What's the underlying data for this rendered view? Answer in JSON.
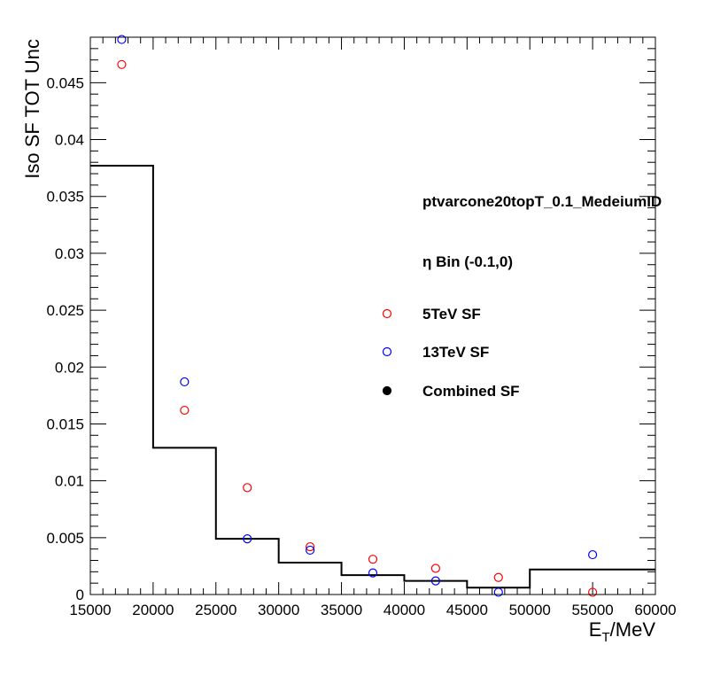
{
  "chart_data": {
    "type": "scatter",
    "ylabel": "Iso SF TOT Unc",
    "xlabel_main": "E",
    "xlabel_sub": "T",
    "xlabel_rest": "/MeV",
    "xlim": [
      15000,
      60000
    ],
    "ylim": [
      0,
      0.049
    ],
    "x_ticks": [
      15000,
      20000,
      25000,
      30000,
      35000,
      40000,
      45000,
      50000,
      55000,
      60000
    ],
    "y_ticks": [
      0,
      0.005,
      0.01,
      0.015,
      0.02,
      0.025,
      0.03,
      0.035,
      0.04,
      0.045
    ],
    "x_tick_labels": [
      "15000",
      "20000",
      "25000",
      "30000",
      "35000",
      "40000",
      "45000",
      "50000",
      "55000",
      "60000"
    ],
    "y_tick_labels": [
      "0",
      "0.005",
      "0.01",
      "0.015",
      "0.02",
      "0.025",
      "0.03",
      "0.035",
      "0.04",
      "0.045"
    ],
    "annotations": [
      "ptvarcone20topT_0.1_MedeiumID",
      "η Bin (-0.1,0)"
    ],
    "grid": false,
    "legend_placement": "right",
    "series": [
      {
        "name": "5TeV SF",
        "marker": "open-circle",
        "color": "#ff0000",
        "points": [
          {
            "x": 17500,
            "y": 0.0466
          },
          {
            "x": 22500,
            "y": 0.0162
          },
          {
            "x": 27500,
            "y": 0.0094
          },
          {
            "x": 32500,
            "y": 0.0042
          },
          {
            "x": 37500,
            "y": 0.0031
          },
          {
            "x": 42500,
            "y": 0.0023
          },
          {
            "x": 47500,
            "y": 0.0015
          },
          {
            "x": 55000,
            "y": 0.0002
          }
        ]
      },
      {
        "name": "13TeV SF",
        "marker": "open-circle",
        "color": "#0000ff",
        "points": [
          {
            "x": 17500,
            "y": 0.0488
          },
          {
            "x": 22500,
            "y": 0.0187
          },
          {
            "x": 27500,
            "y": 0.0049
          },
          {
            "x": 32500,
            "y": 0.0039
          },
          {
            "x": 37500,
            "y": 0.0019
          },
          {
            "x": 42500,
            "y": 0.0012
          },
          {
            "x": 47500,
            "y": 0.0002
          },
          {
            "x": 55000,
            "y": 0.0035
          }
        ]
      },
      {
        "name": "Combined SF",
        "marker": "filled-circle",
        "color": "#000000",
        "type": "step",
        "bins": [
          {
            "low": 15000,
            "high": 20000,
            "value": 0.0377
          },
          {
            "low": 20000,
            "high": 25000,
            "value": 0.0129
          },
          {
            "low": 25000,
            "high": 30000,
            "value": 0.0049
          },
          {
            "low": 30000,
            "high": 35000,
            "value": 0.0028
          },
          {
            "low": 35000,
            "high": 40000,
            "value": 0.0017
          },
          {
            "low": 40000,
            "high": 45000,
            "value": 0.0012
          },
          {
            "low": 45000,
            "high": 50000,
            "value": 0.0006
          },
          {
            "low": 50000,
            "high": 60000,
            "value": 0.0022
          }
        ]
      }
    ]
  }
}
